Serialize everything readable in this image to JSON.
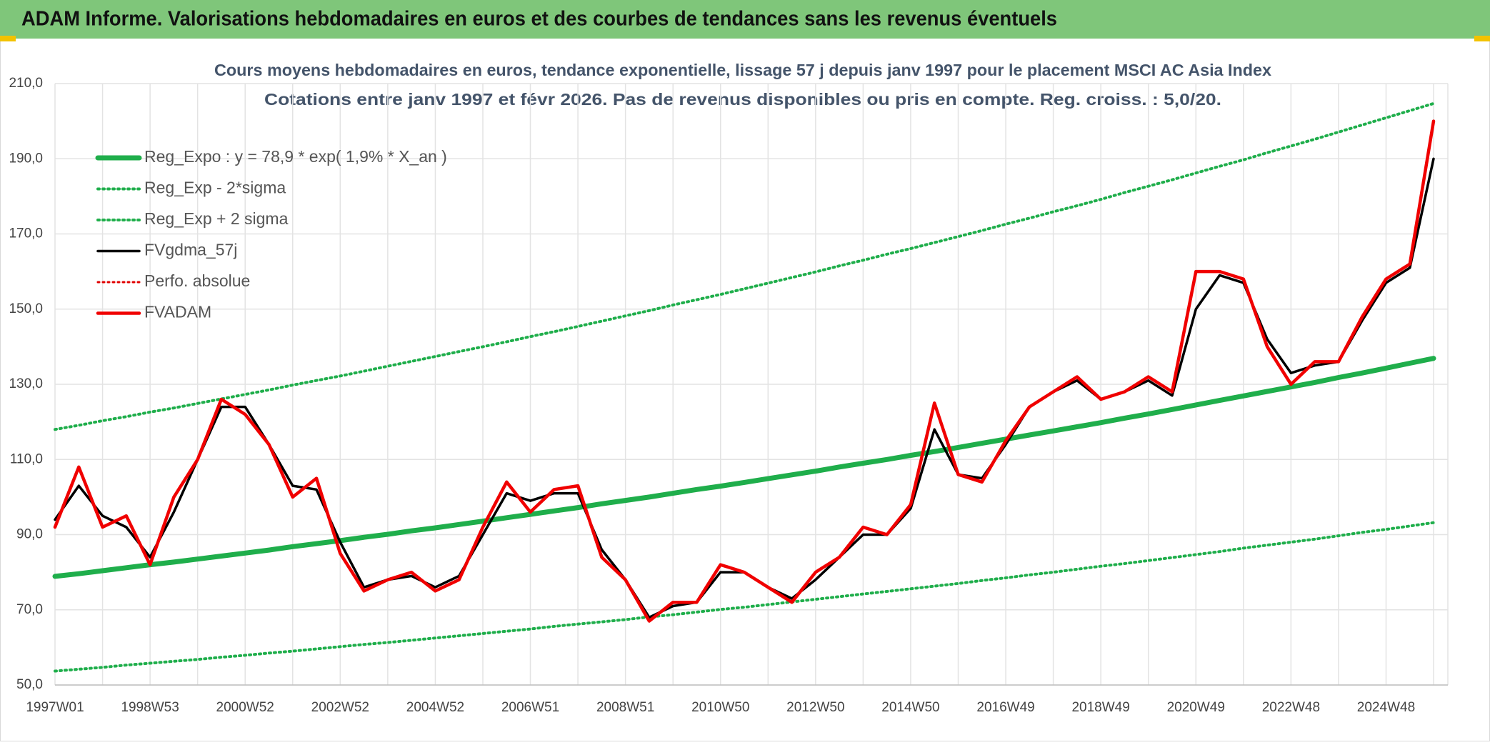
{
  "header": {
    "title": "ADAM Informe. Valorisations hebdomadaires en euros et des courbes de tendances sans les revenus éventuels"
  },
  "chart_data": {
    "type": "line",
    "title": "Cours moyens hebdomadaires en euros, tendance exponentielle, lissage 57 j depuis janv 1997 pour le placement MSCI AC Asia Index",
    "subtitle": "Cotations entre janv 1997 et févr 2026. Pas de revenus disponibles ou pris en compte. Reg. croiss. : 5,0/20.",
    "categories": [
      "1997W01",
      null,
      null,
      null,
      "1998W53",
      null,
      null,
      null,
      "2000W52",
      null,
      null,
      null,
      "2002W52",
      null,
      null,
      null,
      "2004W52",
      null,
      null,
      null,
      "2006W51",
      null,
      null,
      null,
      "2008W51",
      null,
      null,
      null,
      "2010W50",
      null,
      null,
      null,
      "2012W50",
      null,
      null,
      null,
      "2014W50",
      null,
      null,
      null,
      "2016W49",
      null,
      null,
      null,
      "2018W49",
      null,
      null,
      null,
      "2020W49",
      null,
      null,
      null,
      "2022W48",
      null,
      null,
      null,
      "2024W48",
      null,
      null
    ],
    "ylim": [
      50,
      210
    ],
    "yticks": [
      {
        "value": 50,
        "label": "50,0"
      },
      {
        "value": 70,
        "label": "70,0"
      },
      {
        "value": 90,
        "label": "90,0"
      },
      {
        "value": 110,
        "label": "110,0"
      },
      {
        "value": 130,
        "label": "130,0"
      },
      {
        "value": 150,
        "label": "150,0"
      },
      {
        "value": 170,
        "label": "170,0"
      },
      {
        "value": 190,
        "label": "190,0"
      },
      {
        "value": 210,
        "label": "210,0"
      }
    ],
    "grid": true,
    "legend": "upper left",
    "series": [
      {
        "name": "Reg_Expo : y = 78,9 * exp( 1,9% *  X_an )",
        "color": "#1fae4b",
        "style": "solid",
        "values": [
          78.9,
          79.6,
          80.4,
          81.2,
          82.0,
          82.7,
          83.5,
          84.3,
          85.1,
          85.9,
          86.8,
          87.6,
          88.4,
          89.3,
          90.1,
          91.0,
          91.8,
          92.7,
          93.6,
          94.5,
          95.4,
          96.3,
          97.2,
          98.2,
          99.1,
          100.0,
          101.0,
          102.0,
          102.9,
          103.9,
          104.9,
          105.9,
          106.9,
          108.0,
          109.0,
          110.0,
          111.1,
          112.1,
          113.2,
          114.3,
          115.4,
          116.5,
          117.6,
          118.7,
          119.8,
          121.0,
          122.1,
          123.3,
          124.5,
          125.7,
          126.9,
          128.1,
          129.3,
          130.5,
          131.8,
          133.0,
          134.3,
          135.6,
          136.9
        ]
      },
      {
        "name": "Reg_Exp - 2*sigma",
        "color": "#1fae4b",
        "style": "dotted",
        "values": [
          53.7,
          54.2,
          54.7,
          55.3,
          55.8,
          56.3,
          56.8,
          57.4,
          57.9,
          58.5,
          59.0,
          59.6,
          60.2,
          60.8,
          61.3,
          61.9,
          62.5,
          63.1,
          63.7,
          64.3,
          64.9,
          65.6,
          66.2,
          66.8,
          67.4,
          68.1,
          68.7,
          69.4,
          70.1,
          70.7,
          71.4,
          72.1,
          72.8,
          73.5,
          74.2,
          74.9,
          75.6,
          76.3,
          77.0,
          77.8,
          78.5,
          79.3,
          80.0,
          80.8,
          81.6,
          82.3,
          83.1,
          83.9,
          84.7,
          85.5,
          86.4,
          87.2,
          88.0,
          88.8,
          89.7,
          90.6,
          91.4,
          92.3,
          93.2
        ]
      },
      {
        "name": "Reg_Exp + 2 sigma",
        "color": "#1fae4b",
        "style": "dotted",
        "values": [
          118.0,
          119.1,
          120.3,
          121.4,
          122.6,
          123.7,
          124.9,
          126.1,
          127.3,
          128.5,
          129.8,
          131.0,
          132.2,
          133.5,
          134.8,
          136.1,
          137.4,
          138.7,
          140.0,
          141.3,
          142.7,
          144.0,
          145.4,
          146.8,
          148.2,
          149.6,
          151.1,
          152.5,
          153.9,
          155.4,
          156.9,
          158.4,
          159.9,
          161.5,
          163.0,
          164.6,
          166.1,
          167.7,
          169.3,
          170.9,
          172.6,
          174.2,
          175.9,
          177.5,
          179.2,
          181.0,
          182.7,
          184.4,
          186.2,
          188.0,
          189.7,
          191.6,
          193.4,
          195.2,
          197.1,
          199.0,
          200.9,
          202.8,
          204.7
        ]
      },
      {
        "name": "FVgdma_57j",
        "color": "#000000",
        "style": "solid",
        "values": [
          94,
          103,
          95,
          92,
          84,
          96,
          110,
          124,
          124,
          114,
          103,
          102,
          88,
          76,
          78,
          79,
          76,
          79,
          90,
          101,
          99,
          101,
          101,
          86,
          78,
          68,
          71,
          72,
          80,
          80,
          76,
          73,
          78,
          84,
          90,
          90,
          97,
          118,
          106,
          105,
          114,
          124,
          128,
          131,
          126,
          128,
          131,
          127,
          150,
          159,
          157,
          142,
          133,
          135,
          136,
          147,
          157,
          161,
          190
        ]
      },
      {
        "name": "Perfo. absolue",
        "color": "#e00000",
        "style": "dotted",
        "values": [
          null,
          null,
          null,
          null,
          null,
          null,
          null,
          null,
          null,
          null,
          null,
          null,
          null,
          null,
          null,
          null,
          null,
          null,
          null,
          null,
          null,
          null,
          null,
          null,
          null,
          null,
          null,
          null,
          null,
          null,
          null,
          null,
          null,
          null,
          null,
          null,
          null,
          null,
          null,
          null,
          null,
          null,
          null,
          null,
          null,
          null,
          null,
          null,
          null,
          null,
          null,
          null,
          null,
          null,
          null,
          null,
          null,
          null,
          null
        ]
      },
      {
        "name": "FVADAM",
        "color": "#f00000",
        "style": "solid",
        "values": [
          92,
          108,
          92,
          95,
          82,
          100,
          110,
          126,
          122,
          114,
          100,
          105,
          85,
          75,
          78,
          80,
          75,
          78,
          92,
          104,
          96,
          102,
          103,
          84,
          78,
          67,
          72,
          72,
          82,
          80,
          76,
          72,
          80,
          84,
          92,
          90,
          98,
          125,
          106,
          104,
          115,
          124,
          128,
          132,
          126,
          128,
          132,
          128,
          160,
          160,
          158,
          140,
          130,
          136,
          136,
          148,
          158,
          162,
          200
        ]
      }
    ]
  }
}
